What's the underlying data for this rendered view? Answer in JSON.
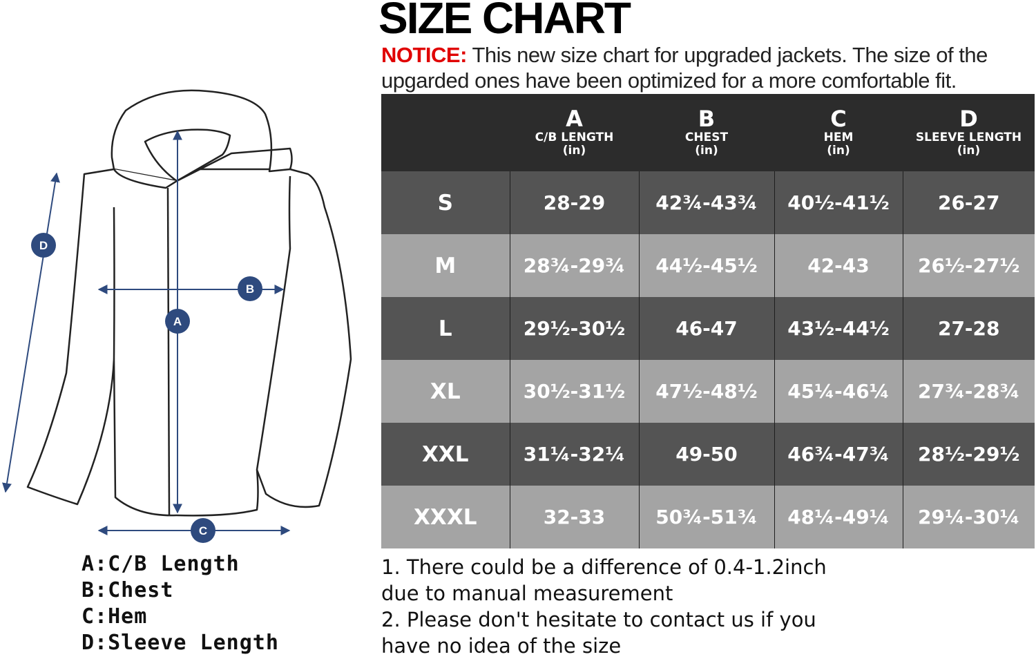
{
  "title": "SIZE CHART",
  "notice": {
    "label": "NOTICE:",
    "text": " This new size chart for upgraded jackets. The size of the upgarded ones have been optimized for a more comfortable fit."
  },
  "diagram": {
    "markers": {
      "a": "A",
      "b": "B",
      "c": "C",
      "d": "D"
    },
    "legend": [
      "A:C/B Length",
      "B:Chest",
      "C:Hem",
      "D:Sleeve Length"
    ],
    "colors": {
      "marker": "#2e4a7e",
      "outline": "#222222"
    }
  },
  "table": {
    "columns": [
      {
        "letter": "A",
        "name": "C/B LENGTH",
        "unit": "(in)"
      },
      {
        "letter": "B",
        "name": "CHEST",
        "unit": "(in)"
      },
      {
        "letter": "C",
        "name": "HEM",
        "unit": "(in)"
      },
      {
        "letter": "D",
        "name": "SLEEVE LENGTH",
        "unit": "(in)"
      }
    ],
    "rows": [
      {
        "size": "S",
        "a": "28-29",
        "b": "42¾-43¾",
        "c": "40½-41½",
        "d": "26-27"
      },
      {
        "size": "M",
        "a": "28¾-29¾",
        "b": "44½-45½",
        "c": "42-43",
        "d": "26½-27½"
      },
      {
        "size": "L",
        "a": "29½-30½",
        "b": "46-47",
        "c": "43½-44½",
        "d": "27-28"
      },
      {
        "size": "XL",
        "a": "30½-31½",
        "b": "47½-48½",
        "c": "45¼-46¼",
        "d": "27¾-28¾"
      },
      {
        "size": "XXL",
        "a": "31¼-32¼",
        "b": "49-50",
        "c": "46¾-47¾",
        "d": "28½-29½"
      },
      {
        "size": "XXXL",
        "a": "32-33",
        "b": "50¾-51¾",
        "c": "48¼-49¼",
        "d": "29¼-30¼"
      }
    ],
    "colors": {
      "header": "#2c2c2c",
      "row_dark": "#545454",
      "row_light": "#a4a4a4"
    }
  },
  "notes": [
    "1. There could be a difference of 0.4-1.2inch due to manual measurement",
    "2. Please don't hesitate to contact us if you have no idea of the size"
  ]
}
